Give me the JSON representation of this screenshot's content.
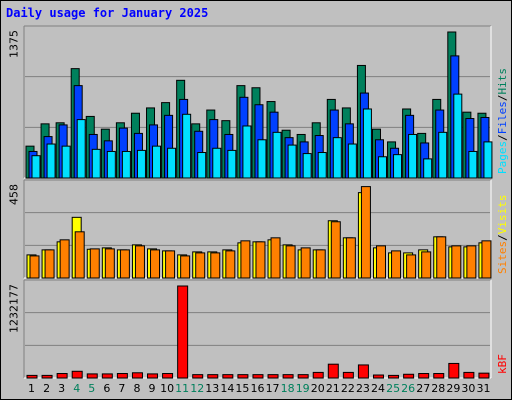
{
  "title": "Daily usage for January 2025",
  "colors": {
    "hits": "#00805c",
    "files": "#0040ff",
    "pages": "#00e0ff",
    "visits": "#ffff00",
    "sites": "#ff8000",
    "kbytes": "#ff0000",
    "weekend_day": "#00805c",
    "weekday": "#000000",
    "bg": "#c0c0c0",
    "grid": "#808080"
  },
  "chart_data": [
    {
      "type": "bar",
      "name_panel": "hits_files_pages",
      "ymax_label": "1375",
      "ylim": [
        0,
        1375
      ],
      "legend": [
        "Pages",
        "/",
        "Files",
        "/",
        "Hits"
      ],
      "categories": [
        "1",
        "2",
        "3",
        "4",
        "5",
        "6",
        "7",
        "8",
        "9",
        "10",
        "11",
        "12",
        "13",
        "14",
        "15",
        "16",
        "17",
        "18",
        "19",
        "20",
        "21",
        "22",
        "23",
        "24",
        "25",
        "26",
        "27",
        "28",
        "29",
        "30",
        "31"
      ],
      "series": [
        {
          "name": "Hits",
          "values": [
            300,
            510,
            520,
            1030,
            580,
            460,
            520,
            610,
            660,
            710,
            920,
            510,
            640,
            540,
            870,
            850,
            720,
            450,
            410,
            520,
            740,
            660,
            1060,
            460,
            340,
            650,
            420,
            740,
            1375,
            620,
            610
          ]
        },
        {
          "name": "Files",
          "values": [
            250,
            390,
            500,
            870,
            410,
            350,
            470,
            420,
            500,
            590,
            740,
            440,
            550,
            410,
            760,
            690,
            620,
            380,
            340,
            400,
            640,
            510,
            800,
            360,
            280,
            590,
            330,
            640,
            1150,
            560,
            570
          ]
        },
        {
          "name": "Pages",
          "values": [
            210,
            320,
            300,
            550,
            270,
            250,
            250,
            260,
            300,
            280,
            600,
            240,
            280,
            260,
            490,
            360,
            430,
            310,
            230,
            240,
            380,
            320,
            650,
            200,
            220,
            410,
            180,
            430,
            790,
            250,
            340
          ]
        }
      ]
    },
    {
      "type": "bar",
      "name_panel": "visits_sites",
      "ymax_label": "458",
      "ylim": [
        0,
        458
      ],
      "legend": [
        "Sites",
        "/",
        "Visits"
      ],
      "categories": [
        "1",
        "2",
        "3",
        "4",
        "5",
        "6",
        "7",
        "8",
        "9",
        "10",
        "11",
        "12",
        "13",
        "14",
        "15",
        "16",
        "17",
        "18",
        "19",
        "20",
        "21",
        "22",
        "23",
        "24",
        "25",
        "26",
        "27",
        "28",
        "29",
        "30",
        "31"
      ],
      "series": [
        {
          "name": "Visits",
          "values": [
            115,
            140,
            180,
            302,
            143,
            150,
            140,
            165,
            145,
            135,
            115,
            130,
            130,
            140,
            175,
            180,
            190,
            165,
            140,
            140,
            285,
            200,
            425,
            150,
            125,
            125,
            140,
            205,
            155,
            155,
            175
          ]
        },
        {
          "name": "Sites",
          "values": [
            110,
            140,
            190,
            230,
            145,
            145,
            140,
            160,
            140,
            135,
            110,
            125,
            125,
            135,
            185,
            180,
            200,
            160,
            150,
            140,
            280,
            200,
            455,
            160,
            135,
            115,
            130,
            205,
            160,
            160,
            185
          ]
        }
      ]
    },
    {
      "type": "bar",
      "name_panel": "kbytes",
      "ymax_label": "1232177",
      "ylim": [
        0,
        1232177
      ],
      "legend": [
        "kB",
        "F"
      ],
      "categories": [
        "1",
        "2",
        "3",
        "4",
        "5",
        "6",
        "7",
        "8",
        "9",
        "10",
        "11",
        "12",
        "13",
        "14",
        "15",
        "16",
        "17",
        "18",
        "19",
        "20",
        "21",
        "22",
        "23",
        "24",
        "25",
        "26",
        "27",
        "28",
        "29",
        "30",
        "31"
      ],
      "series": [
        {
          "name": "kB F",
          "values": [
            35000,
            35000,
            60000,
            90000,
            55000,
            55000,
            60000,
            70000,
            55000,
            60000,
            1232177,
            45000,
            45000,
            45000,
            45000,
            45000,
            45000,
            45000,
            45000,
            75000,
            185000,
            75000,
            175000,
            40000,
            35000,
            50000,
            60000,
            60000,
            195000,
            75000,
            65000
          ]
        }
      ]
    }
  ],
  "weekend_days": [
    "4",
    "5",
    "11",
    "12",
    "18",
    "19",
    "25",
    "26"
  ]
}
